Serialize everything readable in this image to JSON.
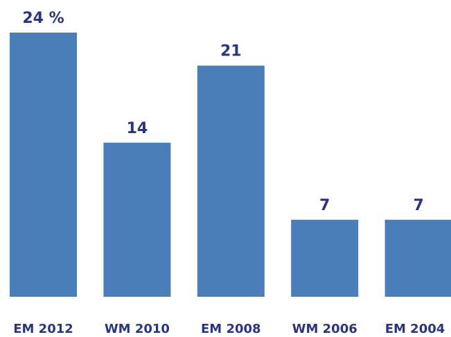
{
  "chart_data": {
    "type": "bar",
    "categories": [
      "EM 2012",
      "WM 2010",
      "EM 2008",
      "WM 2006",
      "EM 2004"
    ],
    "values": [
      24,
      14,
      21,
      7,
      7
    ],
    "value_labels": [
      "24 %",
      "14",
      "21",
      "7",
      "7"
    ],
    "color": "#4a7ebb"
  }
}
